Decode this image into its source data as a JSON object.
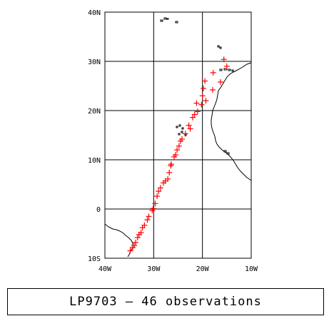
{
  "map": {
    "lon_range": [
      -40,
      -10
    ],
    "lat_range": [
      -10,
      40
    ],
    "grid": true,
    "lon_labels": [
      {
        "lon": -40,
        "text": "40W"
      },
      {
        "lon": -30,
        "text": "30W"
      },
      {
        "lon": -20,
        "text": "20W"
      },
      {
        "lon": -10,
        "text": "10W"
      }
    ],
    "lat_labels": [
      {
        "lat": 40,
        "text": "40N"
      },
      {
        "lat": 30,
        "text": "30N"
      },
      {
        "lat": 20,
        "text": "20N"
      },
      {
        "lat": 10,
        "text": "10N"
      },
      {
        "lat": 0,
        "text": "0"
      },
      {
        "lat": -10,
        "text": "10S"
      }
    ],
    "marker_color": "#ff0000",
    "coast_color": "#000000",
    "observations": [
      [
        -15.6,
        30.4
      ],
      [
        -15.0,
        29.0
      ],
      [
        -17.8,
        27.7
      ],
      [
        -16.3,
        25.8
      ],
      [
        -19.5,
        26.0
      ],
      [
        -17.9,
        24.2
      ],
      [
        -19.8,
        24.5
      ],
      [
        -20.0,
        23.0
      ],
      [
        -19.3,
        22.0
      ],
      [
        -20.2,
        21.2
      ],
      [
        -21.2,
        21.5
      ],
      [
        -21.0,
        19.8
      ],
      [
        -21.6,
        19.2
      ],
      [
        -22.0,
        18.6
      ],
      [
        -22.8,
        17.0
      ],
      [
        -22.5,
        16.3
      ],
      [
        -23.5,
        15.3
      ],
      [
        -24.2,
        14.2
      ],
      [
        -24.5,
        13.8
      ],
      [
        -24.8,
        12.8
      ],
      [
        -25.2,
        12.0
      ],
      [
        -25.5,
        11.0
      ],
      [
        -25.8,
        10.6
      ],
      [
        -26.4,
        9.1
      ],
      [
        -26.5,
        8.8
      ],
      [
        -26.8,
        7.4
      ],
      [
        -27.1,
        6.1
      ],
      [
        -27.6,
        5.7
      ],
      [
        -28.0,
        5.3
      ],
      [
        -28.6,
        4.3
      ],
      [
        -29.0,
        3.6
      ],
      [
        -29.3,
        2.6
      ],
      [
        -29.7,
        1.1
      ],
      [
        -30.1,
        0.1
      ],
      [
        -30.3,
        -0.3
      ],
      [
        -31.0,
        -1.5
      ],
      [
        -31.3,
        -2.2
      ],
      [
        -31.9,
        -3.3
      ],
      [
        -32.3,
        -3.8
      ],
      [
        -32.6,
        -4.8
      ],
      [
        -33.0,
        -5.2
      ],
      [
        -33.3,
        -5.8
      ],
      [
        -33.7,
        -6.8
      ],
      [
        -34.0,
        -7.4
      ],
      [
        -34.3,
        -7.8
      ],
      [
        -34.8,
        -8.5
      ]
    ]
  },
  "caption": {
    "text": "LP9703 — 46 observations"
  }
}
